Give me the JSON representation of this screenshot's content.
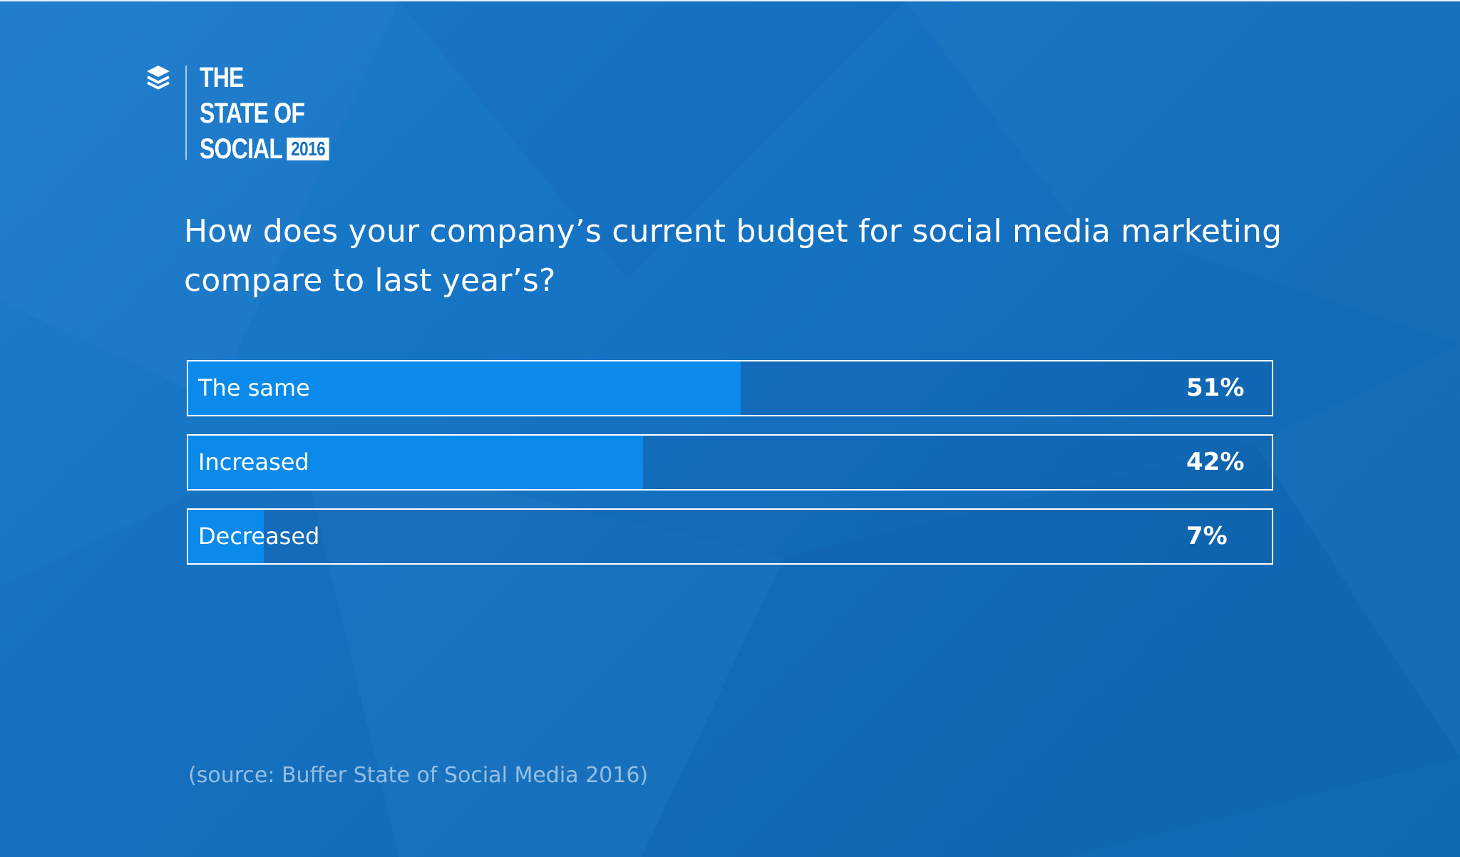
{
  "brand": {
    "logo_lines": [
      "THE",
      "STATE OF",
      "SOCIAL"
    ],
    "badge": "2016"
  },
  "colors": {
    "background": "#1674c4",
    "bar_fill": "#0a8aea",
    "bar_border": "#ffffff",
    "text": "#ffffff"
  },
  "chart_data": {
    "type": "bar",
    "orientation": "horizontal",
    "title": "How does your company’s current budget for social media marketing compare to last year’s?",
    "categories": [
      "The same",
      "Increased",
      "Decreased"
    ],
    "values": [
      51,
      42,
      7
    ],
    "value_labels": [
      "51%",
      "42%",
      "7%"
    ],
    "unit": "%",
    "xlim": [
      0,
      100
    ]
  },
  "source": "(source: Buffer State of Social Media 2016)"
}
